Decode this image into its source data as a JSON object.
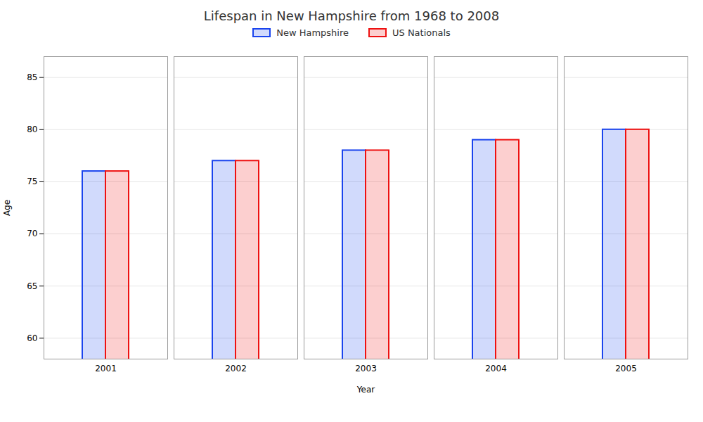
{
  "chart_data": {
    "type": "bar",
    "title": "Lifespan in New Hampshire from 1968 to 2008",
    "x_label": "Year",
    "y_label": "Age",
    "categories": [
      "2001",
      "2002",
      "2003",
      "2004",
      "2005"
    ],
    "series": [
      {
        "name": "New Hampshire",
        "color": "#1a44ee",
        "values": [
          76,
          77,
          78,
          79,
          80
        ]
      },
      {
        "name": "US Nationals",
        "color": "#ee1111",
        "values": [
          76,
          77,
          78,
          79,
          80
        ]
      }
    ],
    "ylim": [
      58,
      87
    ],
    "yticks": [
      60,
      65,
      70,
      75,
      80,
      85
    ],
    "grid": true,
    "legend": "top"
  }
}
